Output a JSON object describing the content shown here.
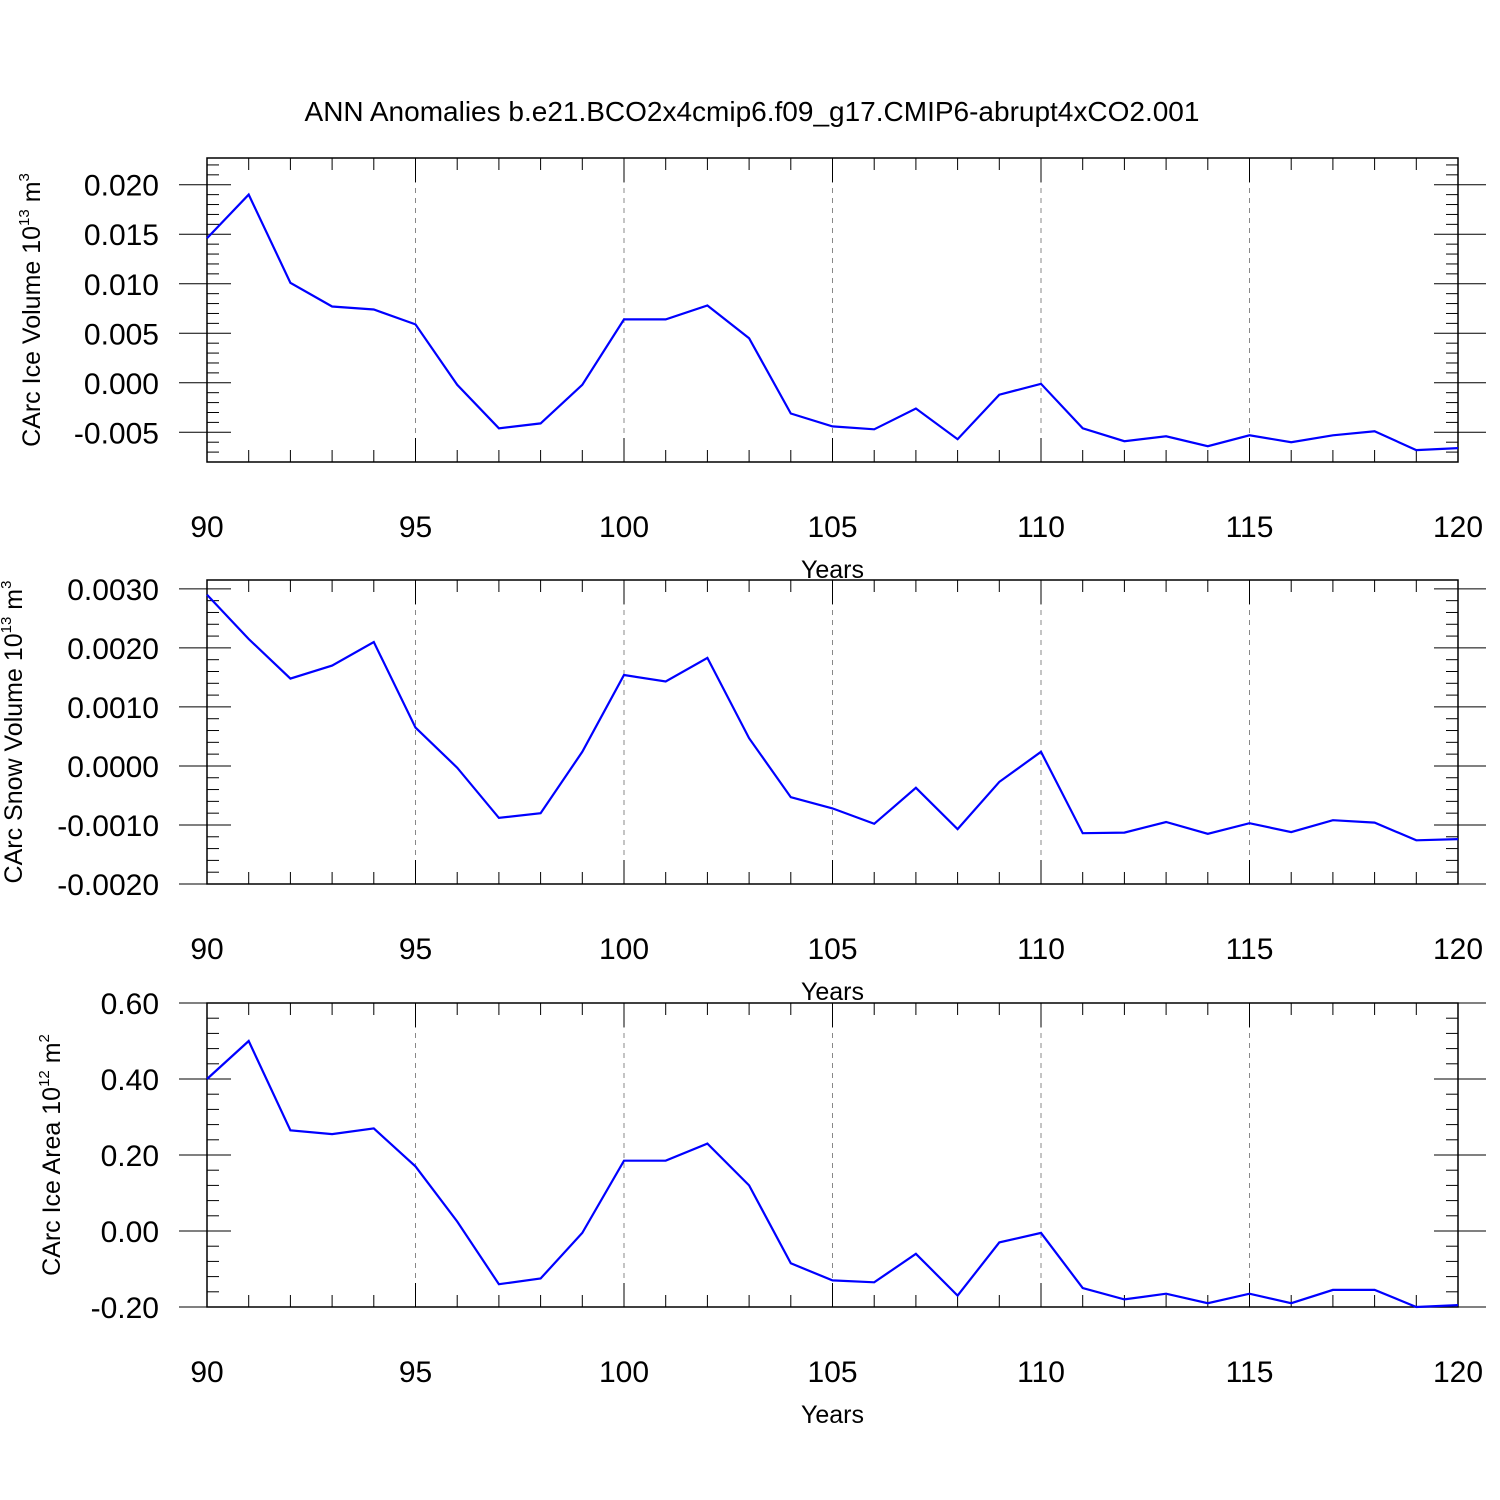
{
  "title": "ANN Anomalies b.e21.BCO2x4cmip6.f09_g17.CMIP6-abrupt4xCO2.001",
  "line_color": "#0000ff",
  "chart_data": [
    {
      "type": "line",
      "xlabel": "Years",
      "ylabel": "CArc Ice Volume 10",
      "ylabel_exp": "13",
      "ylabel_unit": " m",
      "ylabel_unit_exp": "3",
      "xlim": [
        90,
        120
      ],
      "ylim": [
        -0.008,
        0.0227
      ],
      "xticks": [
        90,
        95,
        100,
        105,
        110,
        115,
        120
      ],
      "xtick_labels": [
        "90",
        "95",
        "100",
        "105",
        "110",
        "115",
        "120"
      ],
      "yticks": [
        0.02,
        0.015,
        0.01,
        0.005,
        0.0,
        -0.005
      ],
      "ytick_labels": [
        "0.020",
        "0.015",
        "0.010",
        "0.005",
        "0.000",
        "-0.005"
      ],
      "series": [
        {
          "x": [
            90,
            91,
            92,
            93,
            94,
            95,
            96,
            97,
            98,
            99,
            100,
            101,
            102,
            103,
            104,
            105,
            106,
            107,
            108,
            109,
            110,
            111,
            112,
            113,
            114,
            115,
            116,
            117,
            118,
            119,
            120
          ],
          "values": [
            0.0146,
            0.019,
            0.0101,
            0.0077,
            0.0074,
            0.0059,
            -0.0002,
            -0.0046,
            -0.0041,
            -0.0002,
            0.0064,
            0.0064,
            0.0078,
            0.0045,
            -0.0031,
            -0.0044,
            -0.0047,
            -0.0026,
            -0.0057,
            -0.0012,
            -0.0001,
            -0.0046,
            -0.0059,
            -0.0054,
            -0.0064,
            -0.0053,
            -0.006,
            -0.0053,
            -0.0049,
            -0.0068,
            -0.0066
          ]
        }
      ]
    },
    {
      "type": "line",
      "xlabel": "Years",
      "ylabel": "CArc Snow Volume 10",
      "ylabel_exp": "13",
      "ylabel_unit": " m",
      "ylabel_unit_exp": "3",
      "xlim": [
        90,
        120
      ],
      "ylim": [
        -0.002,
        0.00315
      ],
      "xticks": [
        90,
        95,
        100,
        105,
        110,
        115,
        120
      ],
      "xtick_labels": [
        "90",
        "95",
        "100",
        "105",
        "110",
        "115",
        "120"
      ],
      "yticks": [
        0.003,
        0.002,
        0.001,
        0.0,
        -0.001,
        -0.002
      ],
      "ytick_labels": [
        "0.0030",
        "0.0020",
        "0.0010",
        "0.0000",
        "-0.0010",
        "-0.0020"
      ],
      "series": [
        {
          "x": [
            90,
            91,
            92,
            93,
            94,
            95,
            96,
            97,
            98,
            99,
            100,
            101,
            102,
            103,
            104,
            105,
            106,
            107,
            108,
            109,
            110,
            111,
            112,
            113,
            114,
            115,
            116,
            117,
            118,
            119,
            120
          ],
          "values": [
            0.0029,
            0.00215,
            0.00148,
            0.0017,
            0.0021,
            0.00065,
            -3e-05,
            -0.00088,
            -0.0008,
            0.00024,
            0.00154,
            0.00143,
            0.00183,
            0.00047,
            -0.00053,
            -0.00072,
            -0.00098,
            -0.00037,
            -0.00107,
            -0.00027,
            0.00024,
            -0.00114,
            -0.00113,
            -0.00095,
            -0.00115,
            -0.00097,
            -0.00112,
            -0.00092,
            -0.00096,
            -0.00126,
            -0.00124
          ]
        }
      ]
    },
    {
      "type": "line",
      "xlabel": "Years",
      "ylabel": "CArc Ice Area 10",
      "ylabel_exp": "12",
      "ylabel_unit": " m",
      "ylabel_unit_exp": "2",
      "xlim": [
        90,
        120
      ],
      "ylim": [
        -0.2,
        0.6
      ],
      "xticks": [
        90,
        95,
        100,
        105,
        110,
        115,
        120
      ],
      "xtick_labels": [
        "90",
        "95",
        "100",
        "105",
        "110",
        "115",
        "120"
      ],
      "yticks": [
        0.6,
        0.4,
        0.2,
        0.0,
        -0.2
      ],
      "ytick_labels": [
        "0.60",
        "0.40",
        "0.20",
        "0.00",
        "-0.20"
      ],
      "series": [
        {
          "x": [
            90,
            91,
            92,
            93,
            94,
            95,
            96,
            97,
            98,
            99,
            100,
            101,
            102,
            103,
            104,
            105,
            106,
            107,
            108,
            109,
            110,
            111,
            112,
            113,
            114,
            115,
            116,
            117,
            118,
            119,
            120
          ],
          "values": [
            0.4,
            0.5,
            0.265,
            0.255,
            0.27,
            0.17,
            0.025,
            -0.14,
            -0.125,
            -0.005,
            0.185,
            0.185,
            0.23,
            0.12,
            -0.085,
            -0.13,
            -0.135,
            -0.06,
            -0.17,
            -0.03,
            -0.005,
            -0.15,
            -0.18,
            -0.165,
            -0.19,
            -0.165,
            -0.19,
            -0.155,
            -0.155,
            -0.2,
            -0.195
          ]
        }
      ]
    }
  ]
}
